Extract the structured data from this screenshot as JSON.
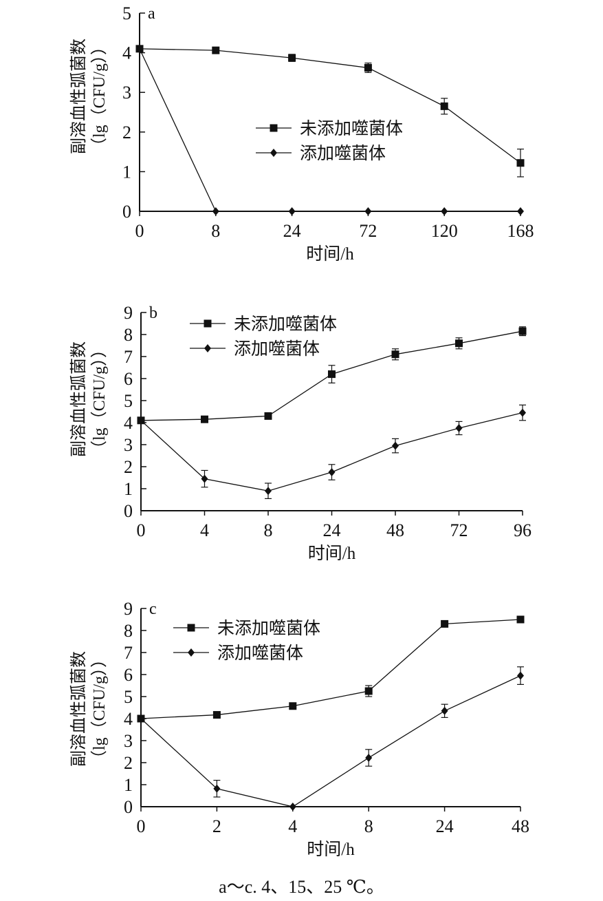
{
  "caption": "a～c. 4、15、25 ℃。",
  "chart_data": [
    {
      "panel_label": "a",
      "type": "line",
      "xlabel": "时间/h",
      "ylabel_line1": "副溶血性弧菌数",
      "ylabel_line2": "（lg（CFU/g））",
      "categories": [
        "0",
        "8",
        "24",
        "72",
        "120",
        "168"
      ],
      "ylim": [
        0,
        5
      ],
      "yticks": [
        0,
        1,
        2,
        3,
        4,
        5
      ],
      "legend_position": "center-right",
      "series": [
        {
          "name": "未添加噬菌体",
          "marker": "square",
          "values": [
            4.1,
            4.06,
            3.87,
            3.62,
            2.65,
            1.22
          ],
          "errors": [
            0.05,
            0.05,
            0.09,
            0.12,
            0.2,
            0.35
          ]
        },
        {
          "name": "添加噬菌体",
          "marker": "diamond",
          "values": [
            4.1,
            0,
            0,
            0,
            0,
            0
          ],
          "errors": [
            0,
            0,
            0,
            0,
            0,
            0
          ]
        }
      ]
    },
    {
      "panel_label": "b",
      "type": "line",
      "xlabel": "时间/h",
      "ylabel_line1": "副溶血性弧菌数",
      "ylabel_line2": "（lg（CFU/g））",
      "categories": [
        "0",
        "4",
        "8",
        "24",
        "48",
        "72",
        "96"
      ],
      "ylim": [
        0,
        9
      ],
      "yticks": [
        0,
        1,
        2,
        3,
        4,
        5,
        6,
        7,
        8,
        9
      ],
      "legend_position": "top-left",
      "series": [
        {
          "name": "未添加噬菌体",
          "marker": "square",
          "values": [
            4.1,
            4.15,
            4.3,
            6.2,
            7.1,
            7.6,
            8.15
          ],
          "errors": [
            0.08,
            0.1,
            0.1,
            0.4,
            0.25,
            0.25,
            0.2
          ]
        },
        {
          "name": "添加噬菌体",
          "marker": "diamond",
          "values": [
            4.1,
            1.45,
            0.9,
            1.75,
            2.95,
            3.75,
            4.45
          ],
          "errors": [
            0,
            0.38,
            0.35,
            0.35,
            0.32,
            0.3,
            0.35
          ]
        }
      ]
    },
    {
      "panel_label": "c",
      "type": "line",
      "xlabel": "时间/h",
      "ylabel_line1": "副溶血性弧菌数",
      "ylabel_line2": "（lg（CFU/g））",
      "categories": [
        "0",
        "2",
        "4",
        "8",
        "24",
        "48"
      ],
      "ylim": [
        0,
        9
      ],
      "yticks": [
        0,
        1,
        2,
        3,
        4,
        5,
        6,
        7,
        8,
        9
      ],
      "legend_position": "top-left",
      "series": [
        {
          "name": "未添加噬菌体",
          "marker": "square",
          "values": [
            4.0,
            4.17,
            4.57,
            5.25,
            8.3,
            8.5
          ],
          "errors": [
            0.05,
            0.08,
            0.1,
            0.25,
            0.1,
            0.08
          ]
        },
        {
          "name": "添加噬菌体",
          "marker": "diamond",
          "values": [
            4.0,
            0.82,
            0,
            2.22,
            4.35,
            5.95
          ],
          "errors": [
            0,
            0.38,
            0,
            0.38,
            0.3,
            0.4
          ]
        }
      ]
    }
  ]
}
